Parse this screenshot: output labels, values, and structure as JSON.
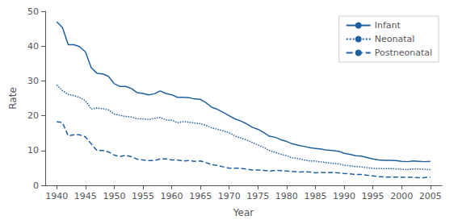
{
  "chart_data": {
    "type": "line",
    "xlabel": "Year",
    "ylabel": "Rate",
    "xlim": [
      1938,
      2007
    ],
    "ylim": [
      0,
      50
    ],
    "xticks": [
      1940,
      1945,
      1950,
      1955,
      1960,
      1965,
      1970,
      1975,
      1980,
      1985,
      1990,
      1995,
      2000,
      2005
    ],
    "yticks": [
      0,
      10,
      20,
      30,
      40,
      50
    ],
    "grid": false,
    "legend": "upper right",
    "x": [
      1940,
      1941,
      1942,
      1943,
      1944,
      1945,
      1946,
      1947,
      1948,
      1949,
      1950,
      1951,
      1952,
      1953,
      1954,
      1955,
      1956,
      1957,
      1958,
      1959,
      1960,
      1961,
      1962,
      1963,
      1964,
      1965,
      1966,
      1967,
      1968,
      1969,
      1970,
      1971,
      1972,
      1973,
      1974,
      1975,
      1976,
      1977,
      1978,
      1979,
      1980,
      1981,
      1982,
      1983,
      1984,
      1985,
      1986,
      1987,
      1988,
      1989,
      1990,
      1991,
      1992,
      1993,
      1994,
      1995,
      1996,
      1997,
      1998,
      1999,
      2000,
      2001,
      2002,
      2003,
      2004,
      2005
    ],
    "series": [
      {
        "name": "Infant",
        "color": "#2060a0",
        "line_style": "solid",
        "values": [
          47.0,
          45.3,
          40.4,
          40.4,
          39.8,
          38.3,
          33.8,
          32.2,
          32.0,
          31.3,
          29.2,
          28.4,
          28.4,
          27.8,
          26.6,
          26.4,
          26.0,
          26.3,
          27.1,
          26.4,
          26.0,
          25.3,
          25.3,
          25.2,
          24.8,
          24.7,
          23.7,
          22.4,
          21.8,
          20.9,
          20.0,
          19.1,
          18.5,
          17.7,
          16.7,
          16.1,
          15.2,
          14.1,
          13.8,
          13.1,
          12.6,
          11.9,
          11.5,
          11.2,
          10.8,
          10.6,
          10.4,
          10.1,
          10.0,
          9.8,
          9.2,
          8.9,
          8.5,
          8.4,
          8.0,
          7.6,
          7.3,
          7.2,
          7.2,
          7.1,
          6.9,
          6.8,
          7.0,
          6.9,
          6.8,
          6.9
        ]
      },
      {
        "name": "Neonatal",
        "color": "#2060a0",
        "line_style": "dotted",
        "values": [
          28.8,
          27.2,
          26.1,
          25.8,
          25.2,
          24.3,
          21.9,
          22.2,
          22.0,
          21.7,
          20.5,
          20.1,
          19.8,
          19.6,
          19.1,
          19.1,
          18.9,
          19.2,
          19.5,
          18.8,
          18.7,
          18.0,
          18.3,
          18.1,
          17.9,
          17.7,
          17.2,
          16.5,
          16.1,
          15.6,
          15.1,
          14.2,
          13.6,
          13.0,
          12.3,
          11.6,
          10.9,
          10.0,
          9.5,
          8.9,
          8.5,
          7.9,
          7.7,
          7.3,
          7.0,
          7.0,
          6.7,
          6.5,
          6.3,
          6.2,
          5.8,
          5.6,
          5.4,
          5.3,
          5.1,
          4.9,
          4.8,
          4.8,
          4.8,
          4.7,
          4.6,
          4.5,
          4.7,
          4.7,
          4.6,
          4.5
        ]
      },
      {
        "name": "Postneonatal",
        "color": "#2060a0",
        "line_style": "dashed",
        "values": [
          18.3,
          18.0,
          14.2,
          14.5,
          14.5,
          13.9,
          11.9,
          10.0,
          10.0,
          9.6,
          8.7,
          8.3,
          8.6,
          8.2,
          7.5,
          7.3,
          7.1,
          7.1,
          7.6,
          7.6,
          7.3,
          7.3,
          7.0,
          7.1,
          6.9,
          7.0,
          6.5,
          5.9,
          5.7,
          5.3,
          4.9,
          4.9,
          4.9,
          4.7,
          4.4,
          4.4,
          4.3,
          4.1,
          4.3,
          4.2,
          4.1,
          4.0,
          3.8,
          3.9,
          3.8,
          3.6,
          3.7,
          3.6,
          3.7,
          3.6,
          3.4,
          3.3,
          3.1,
          3.1,
          2.9,
          2.7,
          2.5,
          2.4,
          2.4,
          2.4,
          2.3,
          2.3,
          2.3,
          2.2,
          2.2,
          2.4
        ]
      }
    ]
  }
}
